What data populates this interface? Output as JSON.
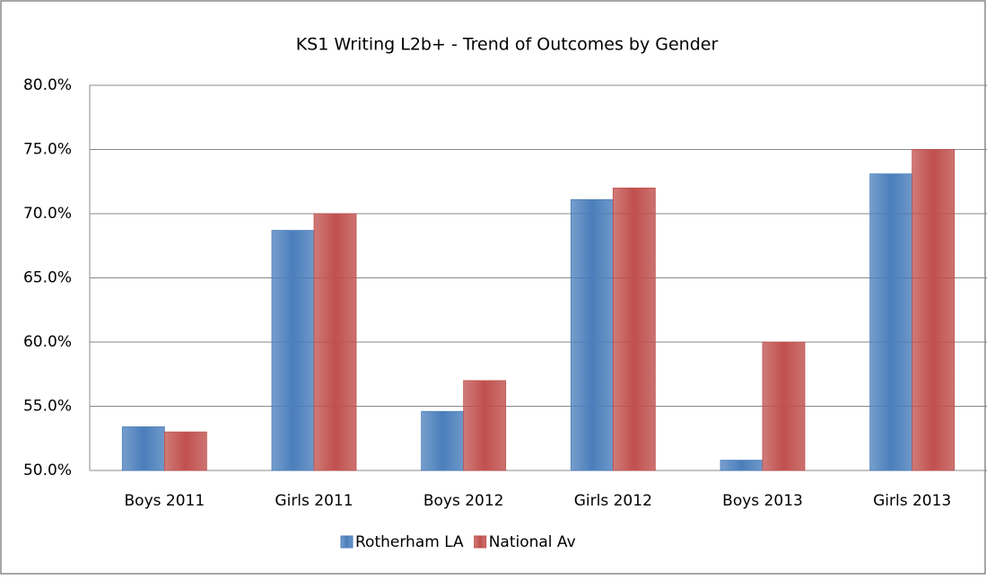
{
  "chart_data": {
    "type": "bar",
    "title": "KS1 Writing L2b+ - Trend of Outcomes  by Gender",
    "categories": [
      "Boys 2011",
      "Girls 2011",
      "Boys 2012",
      "Girls 2012",
      "Boys 2013",
      "Girls 2013"
    ],
    "series": [
      {
        "name": "Rotherham LA",
        "color": "#4a7ebb",
        "values": [
          53.4,
          68.7,
          54.6,
          71.1,
          50.8,
          73.1
        ]
      },
      {
        "name": "National Av",
        "color": "#c0504d",
        "values": [
          53,
          70,
          57,
          72,
          60,
          75
        ]
      }
    ],
    "ylim": [
      50,
      80
    ],
    "yticks": [
      {
        "value": 50,
        "label": "50.0%"
      },
      {
        "value": 55,
        "label": "55.0%"
      },
      {
        "value": 60,
        "label": "60.0%"
      },
      {
        "value": 65,
        "label": "65.0%"
      },
      {
        "value": 70,
        "label": "70.0%"
      },
      {
        "value": 75,
        "label": "75.0%"
      },
      {
        "value": 80,
        "label": "80.0%"
      }
    ],
    "grid": true,
    "legend": "bottom"
  }
}
